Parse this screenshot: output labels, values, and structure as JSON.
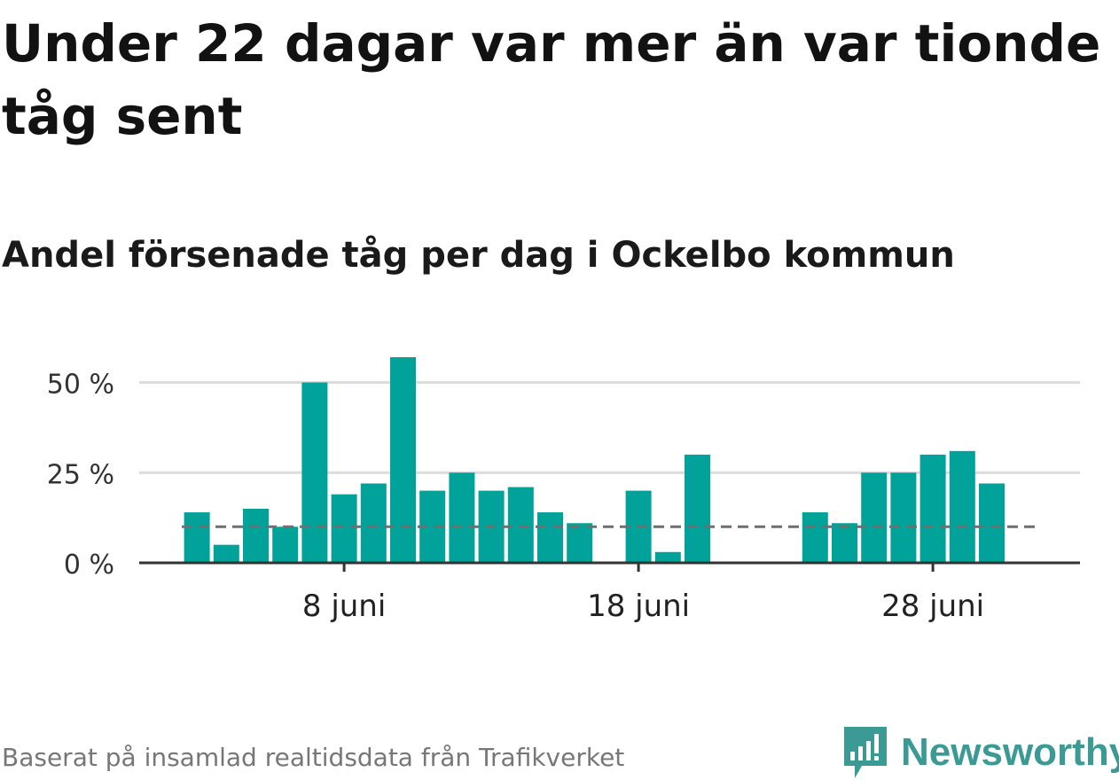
{
  "title": "Under 22 dagar var mer än var tionde tåg sent",
  "subtitle": "Andel försenade tåg per dag i Ockelbo kommun",
  "footer": "Baserat på insamlad realtidsdata från Trafikverket",
  "logo": {
    "text": "Newsworthy",
    "icon": "newsworthy-logo-icon",
    "color": "#3b9b94"
  },
  "chart_data": {
    "type": "bar",
    "x_unit": "day of June",
    "x": [
      1,
      2,
      3,
      4,
      5,
      6,
      7,
      8,
      9,
      10,
      11,
      12,
      13,
      14,
      15,
      16,
      17,
      18,
      19,
      20,
      21,
      22,
      23,
      24,
      25,
      26,
      27,
      28,
      29,
      30
    ],
    "values": [
      null,
      null,
      14,
      5,
      15,
      10,
      50,
      19,
      22,
      57,
      20,
      25,
      20,
      21,
      14,
      11,
      null,
      20,
      3,
      30,
      null,
      null,
      null,
      14,
      11,
      25,
      25,
      30,
      31,
      22
    ],
    "bar_color": "#00a29a",
    "reference_line": {
      "value": 10,
      "style": "dashed",
      "color": "#6e6e73"
    },
    "y_ticks": [
      {
        "value": 0,
        "label": "0 %"
      },
      {
        "value": 25,
        "label": "25 %"
      },
      {
        "value": 50,
        "label": "50 %"
      }
    ],
    "x_ticks": [
      {
        "value": 8,
        "label": "8 juni"
      },
      {
        "value": 18,
        "label": "18 juni"
      },
      {
        "value": 28,
        "label": "28 juni"
      }
    ],
    "ylim": [
      0,
      60
    ],
    "grid": true
  }
}
